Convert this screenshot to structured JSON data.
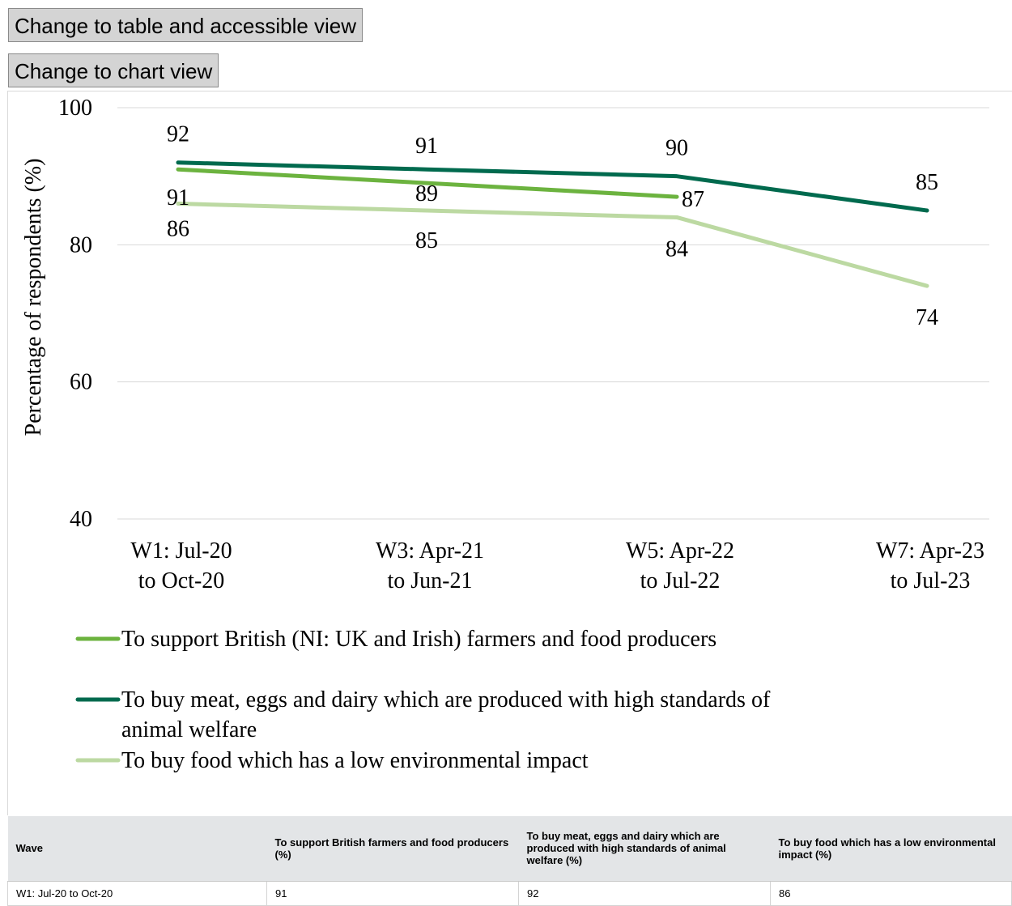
{
  "buttons": {
    "table_view": "Change to table and accessible view",
    "chart_view": "Change to chart view"
  },
  "chart_data": {
    "type": "line",
    "ylabel": "Percentage of respondents (%)",
    "xlabel": "",
    "ylim": [
      40,
      100
    ],
    "yticks": [
      40,
      60,
      80,
      100
    ],
    "grid": true,
    "legend_position": "bottom",
    "categories": [
      [
        "W1: Jul-20",
        "to Oct-20"
      ],
      [
        "W3: Apr-21",
        "to Jun-21"
      ],
      [
        "W5: Apr-22",
        "to Jul-22"
      ],
      [
        "W7: Apr-23",
        "to Jul-23"
      ]
    ],
    "series": [
      {
        "name": "To support British (NI: UK and Irish) farmers and food producers",
        "color": "#6cb33f",
        "values": [
          91,
          89,
          87,
          null
        ]
      },
      {
        "name": "To buy meat, eggs and dairy which are produced with high standards of animal welfare",
        "color": "#006a4e",
        "values": [
          92,
          91,
          90,
          85
        ]
      },
      {
        "name": "To buy food which has a low environmental impact",
        "color": "#bcd9a2",
        "values": [
          86,
          85,
          84,
          74
        ]
      }
    ]
  },
  "table": {
    "headers": [
      "Wave",
      "To support British farmers and food producers (%)",
      "To buy meat, eggs and dairy which are produced with high standards of animal welfare (%)",
      "To buy food which has a low environmental impact (%)"
    ],
    "rows": [
      [
        "W1: Jul-20 to Oct-20",
        "91",
        "92",
        "86"
      ]
    ]
  }
}
